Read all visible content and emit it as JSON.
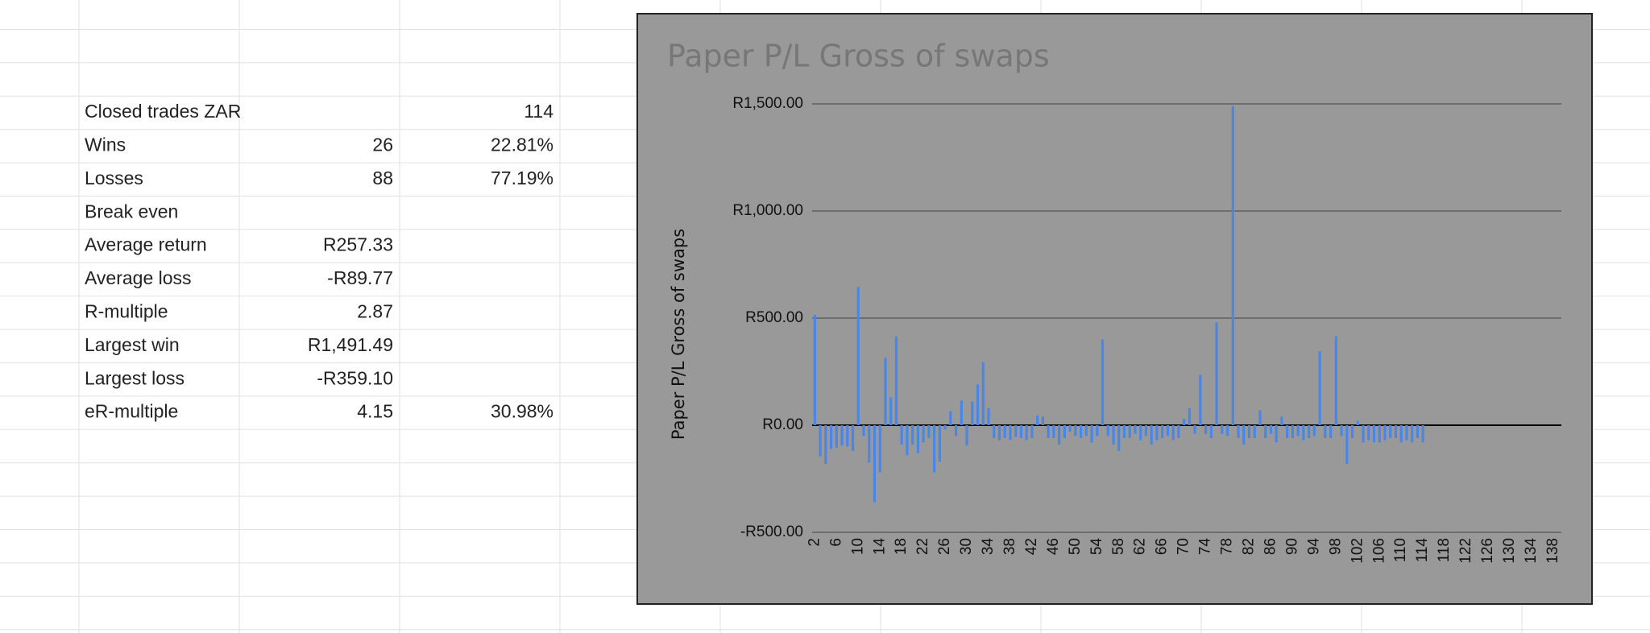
{
  "table": {
    "rows": [
      [
        "Closed trades ZAR",
        null,
        "114"
      ],
      [
        "Wins",
        "26",
        "22.81%"
      ],
      [
        "Losses",
        "88",
        "77.19%"
      ],
      [
        "Break even",
        null,
        null
      ],
      [
        "Average return",
        "R257.33",
        null
      ],
      [
        "Average loss",
        "-R89.77",
        null
      ],
      [
        "R-multiple",
        "2.87",
        null
      ],
      [
        "Largest win",
        "R1,491.49",
        null
      ],
      [
        "Largest loss",
        "-R359.10",
        null
      ],
      [
        "eR-multiple",
        "4.15",
        "30.98%"
      ]
    ]
  },
  "chart_data": {
    "type": "bar",
    "title": "Paper P/L Gross of swaps",
    "y_label": "Paper P/L Gross of swaps",
    "color": "#4a86e8",
    "background": "#999999",
    "ylim": [
      -500,
      1500
    ],
    "yticks": [
      {
        "value": -500,
        "label": "-R500.00"
      },
      {
        "value": 0,
        "label": "R0.00"
      },
      {
        "value": 500,
        "label": "R500.00"
      },
      {
        "value": 1000,
        "label": "R1,000.00"
      },
      {
        "value": 1500,
        "label": "R1,500.00"
      }
    ],
    "grid": true,
    "categories": [
      "2",
      null,
      null,
      null,
      "6",
      null,
      null,
      null,
      "10",
      null,
      null,
      null,
      "14",
      null,
      null,
      null,
      "18",
      null,
      null,
      null,
      "22",
      null,
      null,
      null,
      "26",
      null,
      null,
      null,
      "30",
      null,
      null,
      null,
      "34",
      null,
      null,
      null,
      "38",
      null,
      null,
      null,
      "42",
      null,
      null,
      null,
      "46",
      null,
      null,
      null,
      "50",
      null,
      null,
      null,
      "54",
      null,
      null,
      null,
      "58",
      null,
      null,
      null,
      "62",
      null,
      null,
      null,
      "66",
      null,
      null,
      null,
      "70",
      null,
      null,
      null,
      "74",
      null,
      null,
      null,
      "78",
      null,
      null,
      null,
      "82",
      null,
      null,
      null,
      "86",
      null,
      null,
      null,
      "90",
      null,
      null,
      null,
      "94",
      null,
      null,
      null,
      "98",
      null,
      null,
      null,
      "102",
      null,
      null,
      null,
      "106",
      null,
      null,
      null,
      "110",
      null,
      null,
      null,
      "114",
      null,
      null,
      null,
      "118",
      null,
      null,
      null,
      "122",
      null,
      null,
      null,
      "126",
      null,
      null,
      null,
      "130",
      null,
      null,
      null,
      "134",
      null,
      null,
      null,
      "138",
      null
    ],
    "values": [
      515,
      -145,
      -180,
      -110,
      -105,
      -95,
      -100,
      -120,
      645,
      -50,
      -175,
      -359,
      -220,
      315,
      130,
      415,
      -90,
      -140,
      -90,
      -130,
      -80,
      -60,
      -220,
      -170,
      -20,
      65,
      -50,
      115,
      -95,
      110,
      190,
      295,
      80,
      -60,
      -70,
      -60,
      -70,
      -55,
      -60,
      -70,
      -60,
      45,
      40,
      -60,
      -60,
      -90,
      -60,
      -30,
      -50,
      -60,
      -50,
      -80,
      -50,
      400,
      -50,
      -90,
      -120,
      -60,
      -60,
      -40,
      -70,
      -50,
      -90,
      -70,
      -60,
      -50,
      -70,
      -60,
      30,
      80,
      -40,
      235,
      -40,
      -60,
      480,
      -40,
      -50,
      1490,
      -60,
      -90,
      -60,
      -60,
      70,
      -60,
      -40,
      -80,
      40,
      -60,
      -60,
      -50,
      -70,
      -60,
      -50,
      345,
      -60,
      -60,
      415,
      -50,
      -180,
      -60,
      20,
      -80,
      -70,
      -80,
      -80,
      -70,
      -60,
      -60,
      -80,
      -70,
      -80,
      -60,
      -80,
      null,
      null,
      null,
      null,
      null,
      null,
      null,
      null,
      null,
      null,
      null,
      null,
      null,
      null,
      null,
      null,
      null,
      null,
      null,
      null,
      null,
      null,
      null,
      null,
      null
    ]
  }
}
